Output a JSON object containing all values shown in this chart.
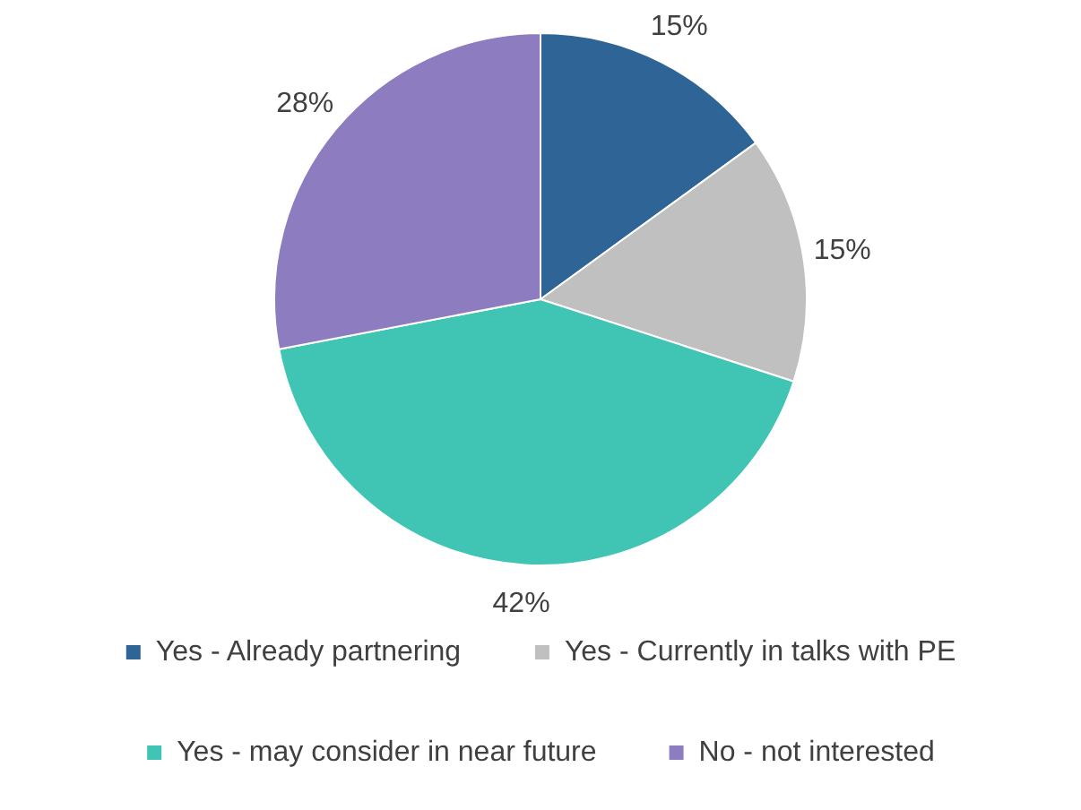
{
  "chart_data": {
    "type": "pie",
    "categories": [
      "Yes - Already partnering",
      "Yes - Currently in talks with PE",
      "Yes - may consider in near future",
      "No - not interested"
    ],
    "values": [
      15,
      15,
      42,
      28
    ],
    "value_labels": [
      "15%",
      "15%",
      "42%",
      "28%"
    ],
    "colors": [
      "#2e6496",
      "#c0c0c0",
      "#40c4b4",
      "#8e7cc0"
    ],
    "legend": "bottom"
  }
}
